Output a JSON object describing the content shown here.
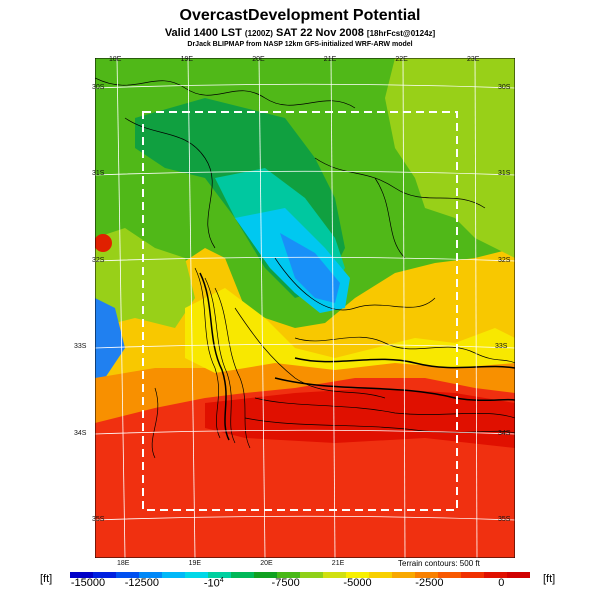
{
  "title": "OvercastDevelopment Potential",
  "subtitle": {
    "main": "Valid 1400 LST",
    "zone": "(1200Z)",
    "date": "SAT 22 Nov 2008",
    "forecast": "[18hrFcst@0124z]"
  },
  "source": "DrJack BLIPMAP from NASP 12km GFS-initialized WRF-ARW model",
  "terrain_note": "Terrain contours: 500 ft",
  "unit_left": "[ft]",
  "unit_right": "[ft]",
  "lon_ticks_top": [
    {
      "label": "18E",
      "lon": 18
    },
    {
      "label": "19E",
      "lon": 19
    },
    {
      "label": "20E",
      "lon": 20
    },
    {
      "label": "21E",
      "lon": 21
    },
    {
      "label": "22E",
      "lon": 22
    },
    {
      "label": "23E",
      "lon": 23
    }
  ],
  "lon_ticks_bottom": [
    {
      "label": "18E",
      "lon": 18
    },
    {
      "label": "19E",
      "lon": 19
    },
    {
      "label": "20E",
      "lon": 20
    },
    {
      "label": "21E",
      "lon": 21
    }
  ],
  "lat_ticks": [
    {
      "label": "30S",
      "lat": 30
    },
    {
      "label": "31S",
      "lat": 31
    },
    {
      "label": "32S",
      "lat": 32
    },
    {
      "label": "33S",
      "lat": 33
    },
    {
      "label": "34S",
      "lat": 34
    },
    {
      "label": "35S",
      "lat": 35
    }
  ],
  "colorbar": {
    "min": -15000,
    "max": 1000,
    "labels": [
      {
        "text": "-15000",
        "value": -15000
      },
      {
        "text": "-12500",
        "value": -12500
      },
      {
        "text": "-10",
        "sup": "4",
        "value": -10000
      },
      {
        "text": "-7500",
        "value": -7500
      },
      {
        "text": "-5000",
        "value": -5000
      },
      {
        "text": "-2500",
        "value": -2500
      },
      {
        "text": "0",
        "value": 0
      }
    ],
    "colors": [
      "#0000c8",
      "#0020e0",
      "#0050f0",
      "#0088f8",
      "#00b8f8",
      "#00d8e8",
      "#00d0a0",
      "#00b858",
      "#10a020",
      "#48b818",
      "#90d018",
      "#d0e010",
      "#f8f000",
      "#f8d000",
      "#f8a800",
      "#f88000",
      "#f85800",
      "#f03000",
      "#e01000",
      "#d00000"
    ]
  }
}
